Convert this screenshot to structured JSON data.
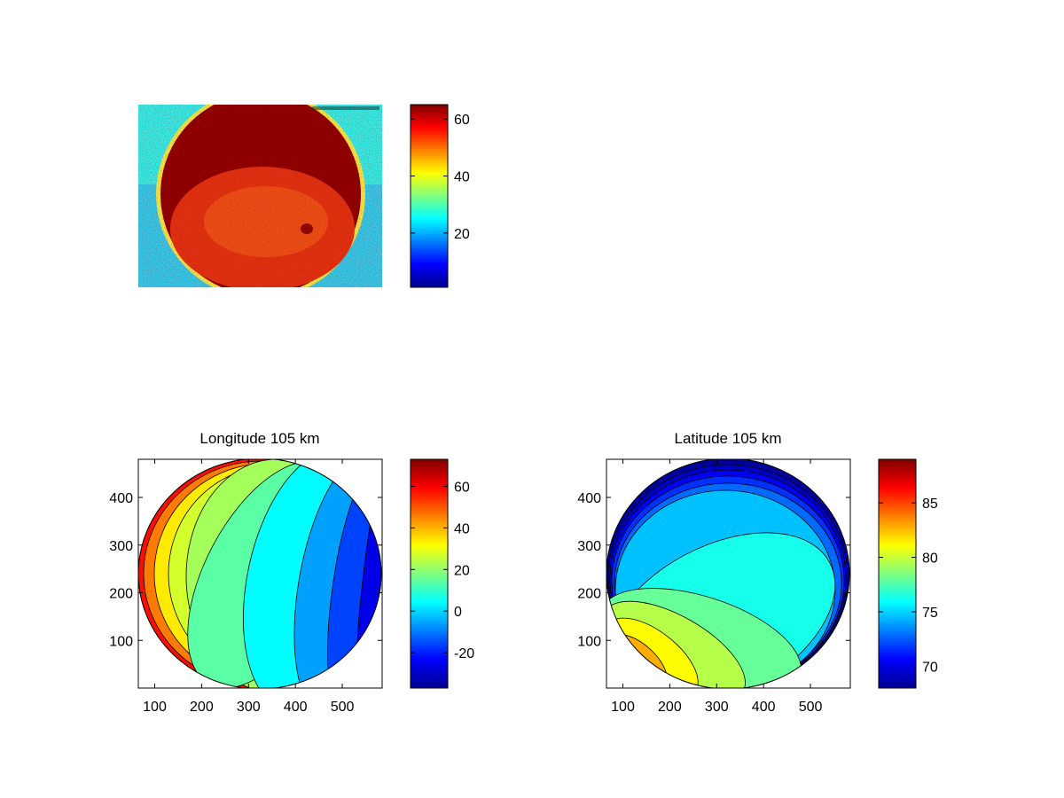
{
  "chart_data": [
    {
      "type": "heatmap",
      "title": "",
      "description_free": true,
      "colormap": "jet",
      "axes_visible": false,
      "value_range": [
        1,
        65
      ],
      "colorbar": {
        "ticks": [
          20,
          40,
          60
        ],
        "labels": [
          "20",
          "40",
          "60"
        ]
      }
    },
    {
      "type": "heatmap",
      "title": "Longitude 105 km",
      "colormap": "jet",
      "xlim": [
        65,
        585
      ],
      "ylim": [
        0,
        480
      ],
      "xticks": [
        100,
        200,
        300,
        400,
        500
      ],
      "xtick_labels": [
        "100",
        "200",
        "300",
        "400",
        "500"
      ],
      "yticks": [
        100,
        200,
        300,
        400
      ],
      "ytick_labels": [
        "100",
        "200",
        "300",
        "400"
      ],
      "value_range": [
        -37,
        73
      ],
      "colorbar": {
        "ticks": [
          -20,
          0,
          20,
          40,
          60
        ],
        "labels": [
          "-20",
          "0",
          "20",
          "40",
          "60"
        ]
      },
      "contour_bands": [
        {
          "value": 58
        },
        {
          "value": 46
        },
        {
          "value": 34
        },
        {
          "value": 27
        },
        {
          "value": 22
        },
        {
          "value": 14
        },
        {
          "value": 4
        },
        {
          "value": -6
        },
        {
          "value": -16
        },
        {
          "value": -26
        }
      ]
    },
    {
      "type": "heatmap",
      "title": "Latitude 105 km",
      "colormap": "jet",
      "xlim": [
        65,
        585
      ],
      "ylim": [
        0,
        480
      ],
      "xticks": [
        100,
        200,
        300,
        400,
        500
      ],
      "xtick_labels": [
        "100",
        "200",
        "300",
        "400",
        "500"
      ],
      "yticks": [
        100,
        200,
        300,
        400
      ],
      "ytick_labels": [
        "100",
        "200",
        "300",
        "400"
      ],
      "value_range": [
        68,
        89
      ],
      "colorbar": {
        "ticks": [
          70,
          75,
          80,
          85
        ],
        "labels": [
          "70",
          "75",
          "80",
          "85"
        ]
      },
      "contour_bands": [
        {
          "value": 68.6
        },
        {
          "value": 69.4
        },
        {
          "value": 70.4
        },
        {
          "value": 71.6
        },
        {
          "value": 72.8
        },
        {
          "value": 74.6
        },
        {
          "value": 76.3
        },
        {
          "value": 78.0
        },
        {
          "value": 79.6
        },
        {
          "value": 81.2
        },
        {
          "value": 82.8
        },
        {
          "value": 84.5
        }
      ]
    }
  ]
}
